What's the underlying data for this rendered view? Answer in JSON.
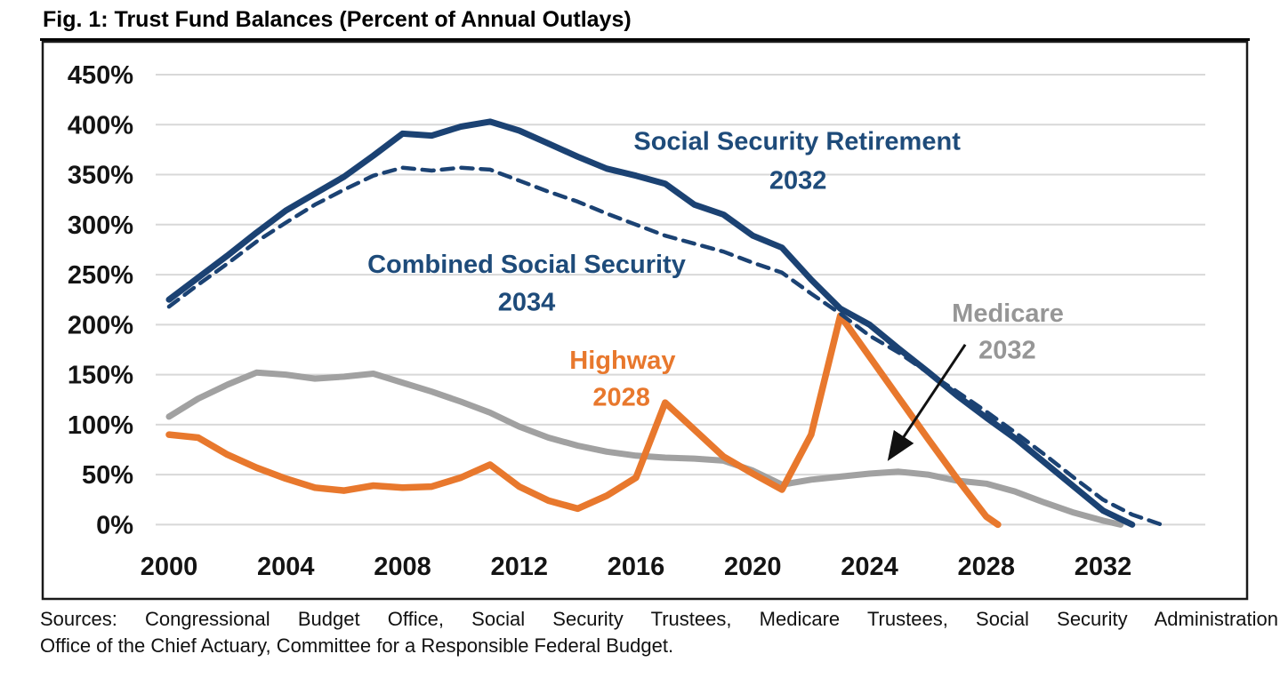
{
  "title": "Fig. 1: Trust Fund Balances (Percent of Annual Outlays)",
  "sources": {
    "line1": "Sources: Congressional Budget Office, Social Security Trustees, Medicare Trustees, Social Security Administration",
    "line2": "Office of the Chief Actuary, Committee for a Responsible Federal Budget."
  },
  "colors": {
    "navy_line": "#1B4273",
    "navy_label": "#1E4B7A",
    "orange": "#E8782D",
    "gray_line": "#A1A1A1",
    "gray_label": "#969696",
    "gridline": "#D8D8D8",
    "border": "#1A1A1A",
    "arrow": "#111111"
  },
  "chart_data": {
    "type": "line",
    "title": "Fig. 1: Trust Fund Balances (Percent of Annual Outlays)",
    "xlabel": "",
    "ylabel": "Percent of Annual Outlays",
    "grid": true,
    "x_axis": {
      "ticks": [
        "2000",
        "2004",
        "2008",
        "2012",
        "2016",
        "2020",
        "2024",
        "2028",
        "2032"
      ],
      "tick_values": [
        2000,
        2004,
        2008,
        2012,
        2016,
        2020,
        2024,
        2028,
        2032
      ],
      "range": [
        1999.5,
        2035.5
      ]
    },
    "y_axis": {
      "ticks": [
        {
          "value": 450,
          "label": "450%"
        },
        {
          "value": 400,
          "label": "400%"
        },
        {
          "value": 350,
          "label": "350%"
        },
        {
          "value": 300,
          "label": "300%"
        },
        {
          "value": 250,
          "label": "250%"
        },
        {
          "value": 200,
          "label": "200%"
        },
        {
          "value": 150,
          "label": "150%"
        },
        {
          "value": 100,
          "label": "100%"
        },
        {
          "value": 50,
          "label": "50%"
        },
        {
          "value": 0,
          "label": "0%"
        }
      ],
      "range": [
        0,
        450
      ]
    },
    "series": [
      {
        "id": "medicare",
        "name": "Medicare",
        "depletion_year_label": "2032",
        "style": "solid",
        "color_key": "gray_line",
        "width": 7,
        "points": [
          [
            2000,
            108
          ],
          [
            2001,
            126
          ],
          [
            2002,
            140
          ],
          [
            2003,
            152
          ],
          [
            2004,
            150
          ],
          [
            2005,
            146
          ],
          [
            2006,
            148
          ],
          [
            2007,
            151
          ],
          [
            2008,
            142
          ],
          [
            2009,
            133
          ],
          [
            2010,
            123
          ],
          [
            2011,
            112
          ],
          [
            2012,
            98
          ],
          [
            2013,
            87
          ],
          [
            2014,
            79
          ],
          [
            2015,
            73
          ],
          [
            2016,
            69
          ],
          [
            2017,
            67
          ],
          [
            2018,
            66
          ],
          [
            2019,
            64
          ],
          [
            2020,
            54
          ],
          [
            2021,
            40
          ],
          [
            2022,
            45
          ],
          [
            2023,
            48
          ],
          [
            2024,
            51
          ],
          [
            2025,
            53
          ],
          [
            2026,
            50
          ],
          [
            2027,
            44
          ],
          [
            2028,
            41
          ],
          [
            2029,
            33
          ],
          [
            2030,
            22
          ],
          [
            2031,
            12
          ],
          [
            2032,
            4
          ],
          [
            2032.6,
            0
          ]
        ]
      },
      {
        "id": "highway",
        "name": "Highway",
        "depletion_year_label": "2028",
        "style": "solid",
        "color_key": "orange",
        "width": 7.5,
        "points": [
          [
            2000,
            90
          ],
          [
            2001,
            87
          ],
          [
            2002,
            70
          ],
          [
            2003,
            57
          ],
          [
            2004,
            46
          ],
          [
            2005,
            37
          ],
          [
            2006,
            34
          ],
          [
            2007,
            39
          ],
          [
            2008,
            37
          ],
          [
            2009,
            38
          ],
          [
            2010,
            47
          ],
          [
            2011,
            60
          ],
          [
            2012,
            38
          ],
          [
            2013,
            24
          ],
          [
            2014,
            16
          ],
          [
            2015,
            29
          ],
          [
            2016,
            47
          ],
          [
            2017,
            122
          ],
          [
            2018,
            95
          ],
          [
            2019,
            68
          ],
          [
            2020,
            51
          ],
          [
            2021,
            35
          ],
          [
            2022,
            90
          ],
          [
            2023,
            209
          ],
          [
            2024,
            168
          ],
          [
            2025,
            127
          ],
          [
            2026,
            86
          ],
          [
            2027,
            46
          ],
          [
            2028,
            8
          ],
          [
            2028.4,
            0
          ]
        ]
      },
      {
        "id": "social-security-retirement",
        "name": "Social Security Retirement",
        "depletion_year_label": "2032",
        "style": "solid",
        "color_key": "navy_line",
        "width": 7,
        "points": [
          [
            2000,
            225
          ],
          [
            2001,
            247
          ],
          [
            2002,
            269
          ],
          [
            2003,
            292
          ],
          [
            2004,
            314
          ],
          [
            2005,
            331
          ],
          [
            2006,
            348
          ],
          [
            2007,
            369
          ],
          [
            2008,
            391
          ],
          [
            2009,
            389
          ],
          [
            2010,
            398
          ],
          [
            2011,
            403
          ],
          [
            2012,
            394
          ],
          [
            2013,
            381
          ],
          [
            2014,
            368
          ],
          [
            2015,
            356
          ],
          [
            2016,
            349
          ],
          [
            2017,
            341
          ],
          [
            2018,
            320
          ],
          [
            2019,
            310
          ],
          [
            2020,
            289
          ],
          [
            2021,
            277
          ],
          [
            2022,
            245
          ],
          [
            2023,
            216
          ],
          [
            2024,
            200
          ],
          [
            2025,
            176
          ],
          [
            2026,
            153
          ],
          [
            2027,
            129
          ],
          [
            2028,
            107
          ],
          [
            2029,
            86
          ],
          [
            2030,
            62
          ],
          [
            2031,
            38
          ],
          [
            2032,
            14
          ],
          [
            2033,
            0
          ]
        ]
      },
      {
        "id": "combined-social-security",
        "name": "Combined Social Security",
        "depletion_year_label": "2034",
        "style": "dashed",
        "color_key": "navy_line",
        "width": 4.5,
        "points": [
          [
            2000,
            218
          ],
          [
            2001,
            240
          ],
          [
            2002,
            261
          ],
          [
            2003,
            283
          ],
          [
            2004,
            302
          ],
          [
            2005,
            320
          ],
          [
            2006,
            335
          ],
          [
            2007,
            349
          ],
          [
            2008,
            357
          ],
          [
            2009,
            354
          ],
          [
            2010,
            357
          ],
          [
            2011,
            355
          ],
          [
            2012,
            344
          ],
          [
            2013,
            333
          ],
          [
            2014,
            323
          ],
          [
            2015,
            311
          ],
          [
            2016,
            300
          ],
          [
            2017,
            289
          ],
          [
            2018,
            281
          ],
          [
            2019,
            273
          ],
          [
            2020,
            262
          ],
          [
            2021,
            252
          ],
          [
            2022,
            231
          ],
          [
            2023,
            211
          ],
          [
            2024,
            189
          ],
          [
            2025,
            172
          ],
          [
            2026,
            152
          ],
          [
            2027,
            133
          ],
          [
            2028,
            113
          ],
          [
            2029,
            92
          ],
          [
            2030,
            70
          ],
          [
            2031,
            47
          ],
          [
            2032,
            25
          ],
          [
            2033,
            10
          ],
          [
            2034,
            0
          ]
        ]
      }
    ],
    "annotations": [
      {
        "id": "ssr-label",
        "text": "Social Security Retirement",
        "year": 2021.52,
        "pct": 375,
        "color_key": "navy_label"
      },
      {
        "id": "ssr-year",
        "text": "2032",
        "year": 2021.55,
        "pct": 336,
        "color_key": "navy_label"
      },
      {
        "id": "combined-label",
        "text": "Combined Social Security",
        "year": 2012.25,
        "pct": 252,
        "color_key": "navy_label"
      },
      {
        "id": "combined-year",
        "text": "2034",
        "year": 2012.25,
        "pct": 214,
        "color_key": "navy_label"
      },
      {
        "id": "highway-label",
        "text": "Highway",
        "year": 2015.54,
        "pct": 156,
        "color_key": "orange"
      },
      {
        "id": "highway-year",
        "text": "2028",
        "year": 2015.5,
        "pct": 119,
        "color_key": "orange"
      },
      {
        "id": "medicare-label",
        "text": "Medicare",
        "year": 2028.74,
        "pct": 203,
        "color_key": "gray_label"
      },
      {
        "id": "medicare-year",
        "text": "2032",
        "year": 2028.72,
        "pct": 166,
        "color_key": "gray_label"
      }
    ],
    "arrow": {
      "from_year": 2027.28,
      "from_pct": 180,
      "to_year": 2024.72,
      "to_pct": 68
    },
    "legend_position": "none"
  }
}
